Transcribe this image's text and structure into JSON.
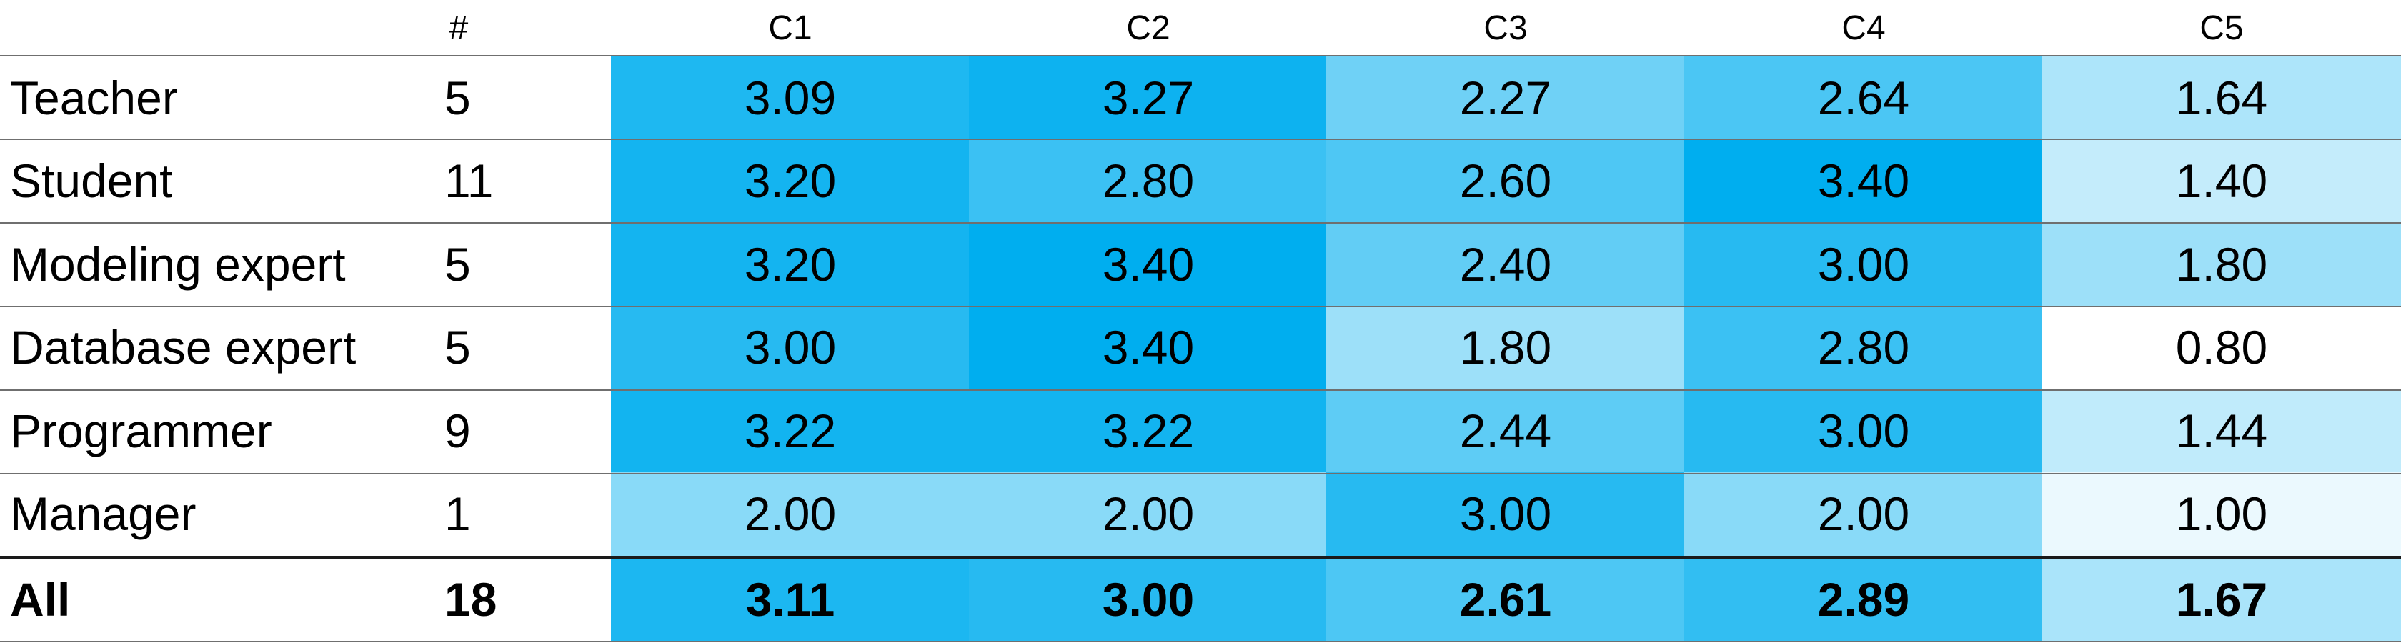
{
  "chart_data": {
    "type": "heatmap",
    "title": "",
    "columns": [
      "#",
      "C1",
      "C2",
      "C3",
      "C4",
      "C5"
    ],
    "rows": [
      {
        "label": "Teacher",
        "count": "5",
        "values": [
          "3.09",
          "3.27",
          "2.27",
          "2.64",
          "1.64"
        ]
      },
      {
        "label": "Student",
        "count": "11",
        "values": [
          "3.20",
          "2.80",
          "2.60",
          "3.40",
          "1.40"
        ]
      },
      {
        "label": "Modeling expert",
        "count": "5",
        "values": [
          "3.20",
          "3.40",
          "2.40",
          "3.00",
          "1.80"
        ]
      },
      {
        "label": "Database expert",
        "count": "5",
        "values": [
          "3.00",
          "3.40",
          "1.80",
          "2.80",
          "0.80"
        ]
      },
      {
        "label": "Programmer",
        "count": "9",
        "values": [
          "3.22",
          "3.22",
          "2.44",
          "3.00",
          "1.44"
        ]
      },
      {
        "label": "Manager",
        "count": "1",
        "values": [
          "2.00",
          "2.00",
          "3.00",
          "2.00",
          "1.00"
        ]
      }
    ],
    "total": {
      "label": "All",
      "count": "18",
      "values": [
        "3.11",
        "3.00",
        "2.61",
        "2.89",
        "1.67"
      ]
    },
    "color_scale": {
      "low": "#ffffff",
      "high": "#00aeef",
      "min": 0.8,
      "max": 3.4
    }
  }
}
